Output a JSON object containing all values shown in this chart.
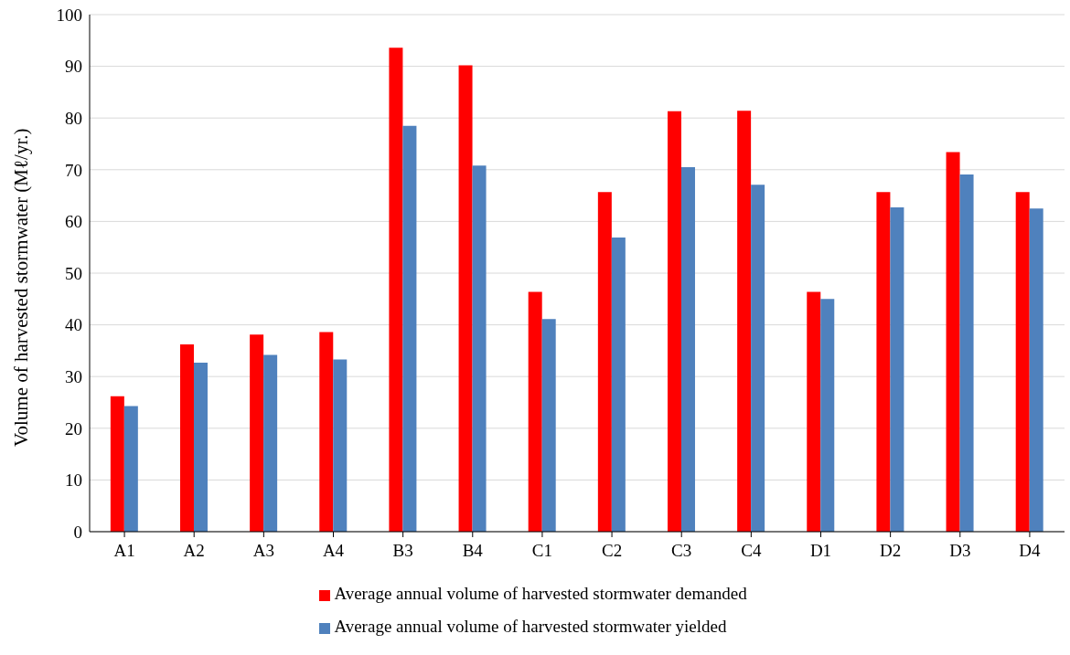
{
  "chart_data": {
    "type": "bar",
    "ylabel": "Volume of harvested stormwater (Mℓ/yr.)",
    "categories": [
      "A1",
      "A2",
      "A3",
      "A4",
      "B3",
      "B4",
      "C1",
      "C2",
      "C3",
      "C4",
      "D1",
      "D2",
      "D3",
      "D4"
    ],
    "series": [
      {
        "name": "Average annual volume of harvested stormwater demanded",
        "color": "#ff0000",
        "values": [
          26.2,
          36.2,
          38.1,
          38.6,
          93.6,
          90.2,
          46.4,
          65.7,
          81.3,
          81.4,
          46.4,
          65.7,
          73.4,
          65.7
        ]
      },
      {
        "name": "Average annual volume of harvested stormwater yielded",
        "color": "#4f81bd",
        "values": [
          24.3,
          32.7,
          34.2,
          33.3,
          78.5,
          70.8,
          41.1,
          56.9,
          70.5,
          67.1,
          45.0,
          62.7,
          69.1,
          62.5
        ]
      }
    ],
    "ylim": [
      0,
      100
    ],
    "yticks": [
      0,
      10,
      20,
      30,
      40,
      50,
      60,
      70,
      80,
      90,
      100
    ],
    "grid": "y",
    "legend": "bottom"
  }
}
